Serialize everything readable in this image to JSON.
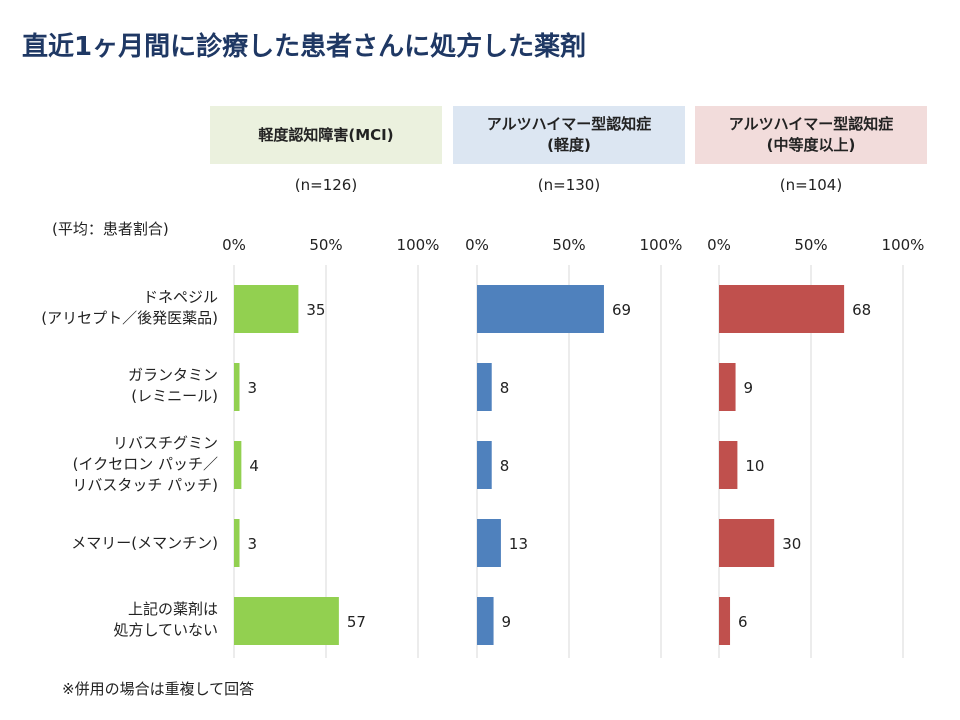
{
  "page_title": "直近1ヶ月間に診療した患者さんに処方した薬剤",
  "avg_label": "(平均：患者割合)",
  "footnote": "※併用の場合は重複して回答",
  "colors": {
    "title": "#1f3864",
    "mci_bar": "#92d050",
    "mild_bar": "#4f81bd",
    "moderate_bar": "#c0504d",
    "mci_header_bg": "#ebf1de",
    "mild_header_bg": "#dce6f2",
    "moderate_header_bg": "#f2dcdb",
    "axis": "#d9d9d9"
  },
  "categories": [
    {
      "line1": "ドネペジル",
      "line2": "(アリセプト／後発医薬品)",
      "line3": ""
    },
    {
      "line1": "ガランタミン",
      "line2": "(レミニール)",
      "line3": ""
    },
    {
      "line1": "リバスチグミン",
      "line2": "(イクセロン パッチ／",
      "line3": "リバスタッチ パッチ)"
    },
    {
      "line1": "メマリー(メマンチン)",
      "line2": "",
      "line3": ""
    },
    {
      "line1": "上記の薬剤は",
      "line2": "処方していない",
      "line3": ""
    }
  ],
  "groups": [
    {
      "header_line1": "軽度認知障害(MCI)",
      "header_line2": "",
      "n": "(n=126)"
    },
    {
      "header_line1": "アルツハイマー型認知症",
      "header_line2": "(軽度)",
      "n": "(n=130)"
    },
    {
      "header_line1": "アルツハイマー型認知症",
      "header_line2": "(中等度以上)",
      "n": "(n=104)"
    }
  ],
  "chart_data": {
    "type": "bar",
    "orientation": "horizontal",
    "title": "直近1ヶ月間に診療した患者さんに処方した薬剤",
    "categories": [
      "ドネペジル(アリセプト／後発医薬品)",
      "ガランタミン(レミニール)",
      "リバスチグミン(イクセロン パッチ／リバスタッチ パッチ)",
      "メマリー(メマンチン)",
      "上記の薬剤は処方していない"
    ],
    "x_ticks": [
      "0%",
      "50%",
      "100%"
    ],
    "xlim": [
      0,
      100
    ],
    "grid": true,
    "legend": "none",
    "series": [
      {
        "name": "軽度認知障害(MCI)",
        "values": [
          35,
          3,
          4,
          3,
          57
        ],
        "color": "#92d050"
      },
      {
        "name": "アルツハイマー型認知症(軽度)",
        "values": [
          69,
          8,
          8,
          13,
          9
        ],
        "color": "#4f81bd"
      },
      {
        "name": "アルツハイマー型認知症(中等度以上)",
        "values": [
          68,
          9,
          10,
          30,
          6
        ],
        "color": "#c0504d"
      }
    ]
  }
}
